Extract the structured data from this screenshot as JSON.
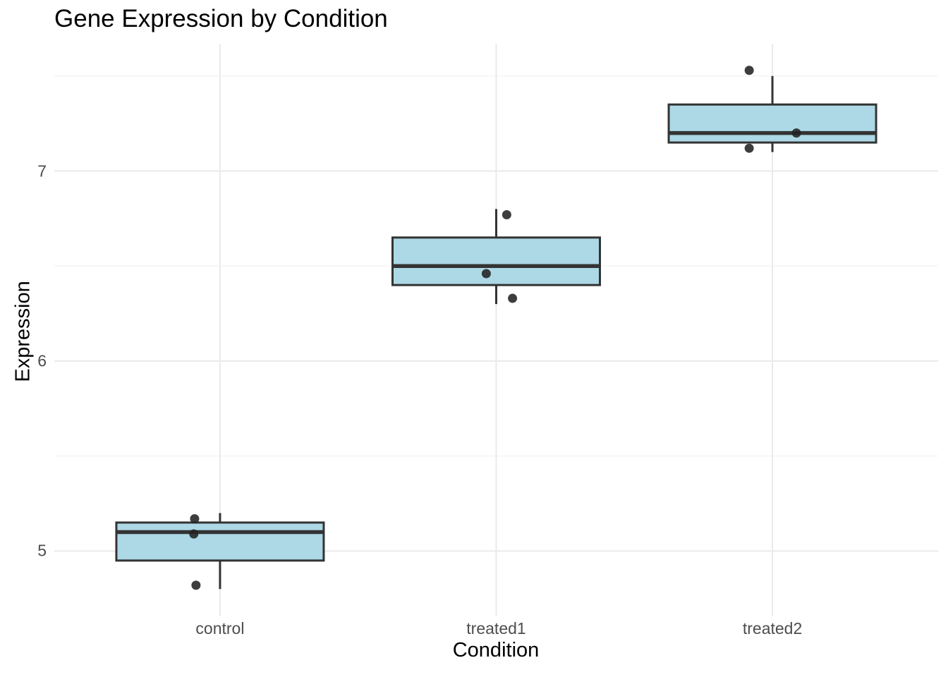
{
  "chart_data": {
    "type": "boxplot",
    "title": "Gene Expression by Condition",
    "xlabel": "Condition",
    "ylabel": "Expression",
    "categories": [
      "control",
      "treated1",
      "treated2"
    ],
    "y_major_ticks": [
      5,
      6,
      7
    ],
    "y_minor_ticks": [
      5.5,
      6.5,
      7.5
    ],
    "ylim": [
      4.66,
      7.67
    ],
    "legend": "none",
    "grid": "major-and-minor-horizontal, major-vertical-at-categories",
    "boxes": [
      {
        "category": "control",
        "whisker_low": 4.8,
        "q1": 4.95,
        "median": 5.1,
        "q3": 5.15,
        "whisker_high": 5.2,
        "points": [
          {
            "y": 5.17,
            "jitter": -0.092
          },
          {
            "y": 5.09,
            "jitter": -0.095
          },
          {
            "y": 4.82,
            "jitter": -0.087
          }
        ]
      },
      {
        "category": "treated1",
        "whisker_low": 6.3,
        "q1": 6.4,
        "median": 6.5,
        "q3": 6.65,
        "whisker_high": 6.8,
        "points": [
          {
            "y": 6.77,
            "jitter": 0.038
          },
          {
            "y": 6.46,
            "jitter": -0.036
          },
          {
            "y": 6.33,
            "jitter": 0.059
          }
        ]
      },
      {
        "category": "treated2",
        "whisker_low": 7.1,
        "q1": 7.15,
        "median": 7.2,
        "q3": 7.35,
        "whisker_high": 7.5,
        "points": [
          {
            "y": 7.53,
            "jitter": -0.084
          },
          {
            "y": 7.2,
            "jitter": 0.087
          },
          {
            "y": 7.12,
            "jitter": -0.084
          }
        ]
      }
    ],
    "colors": {
      "box_fill": "#ADD8E6",
      "box_stroke": "#333333",
      "median_stroke": "#333333",
      "point": "#222222",
      "grid_major": "#EAEAEA",
      "grid_minor": "#F4F4F4",
      "tick_label": "#4D4D4D",
      "title": "#000000",
      "axis_title": "#000000",
      "background": "#FFFFFF"
    }
  }
}
